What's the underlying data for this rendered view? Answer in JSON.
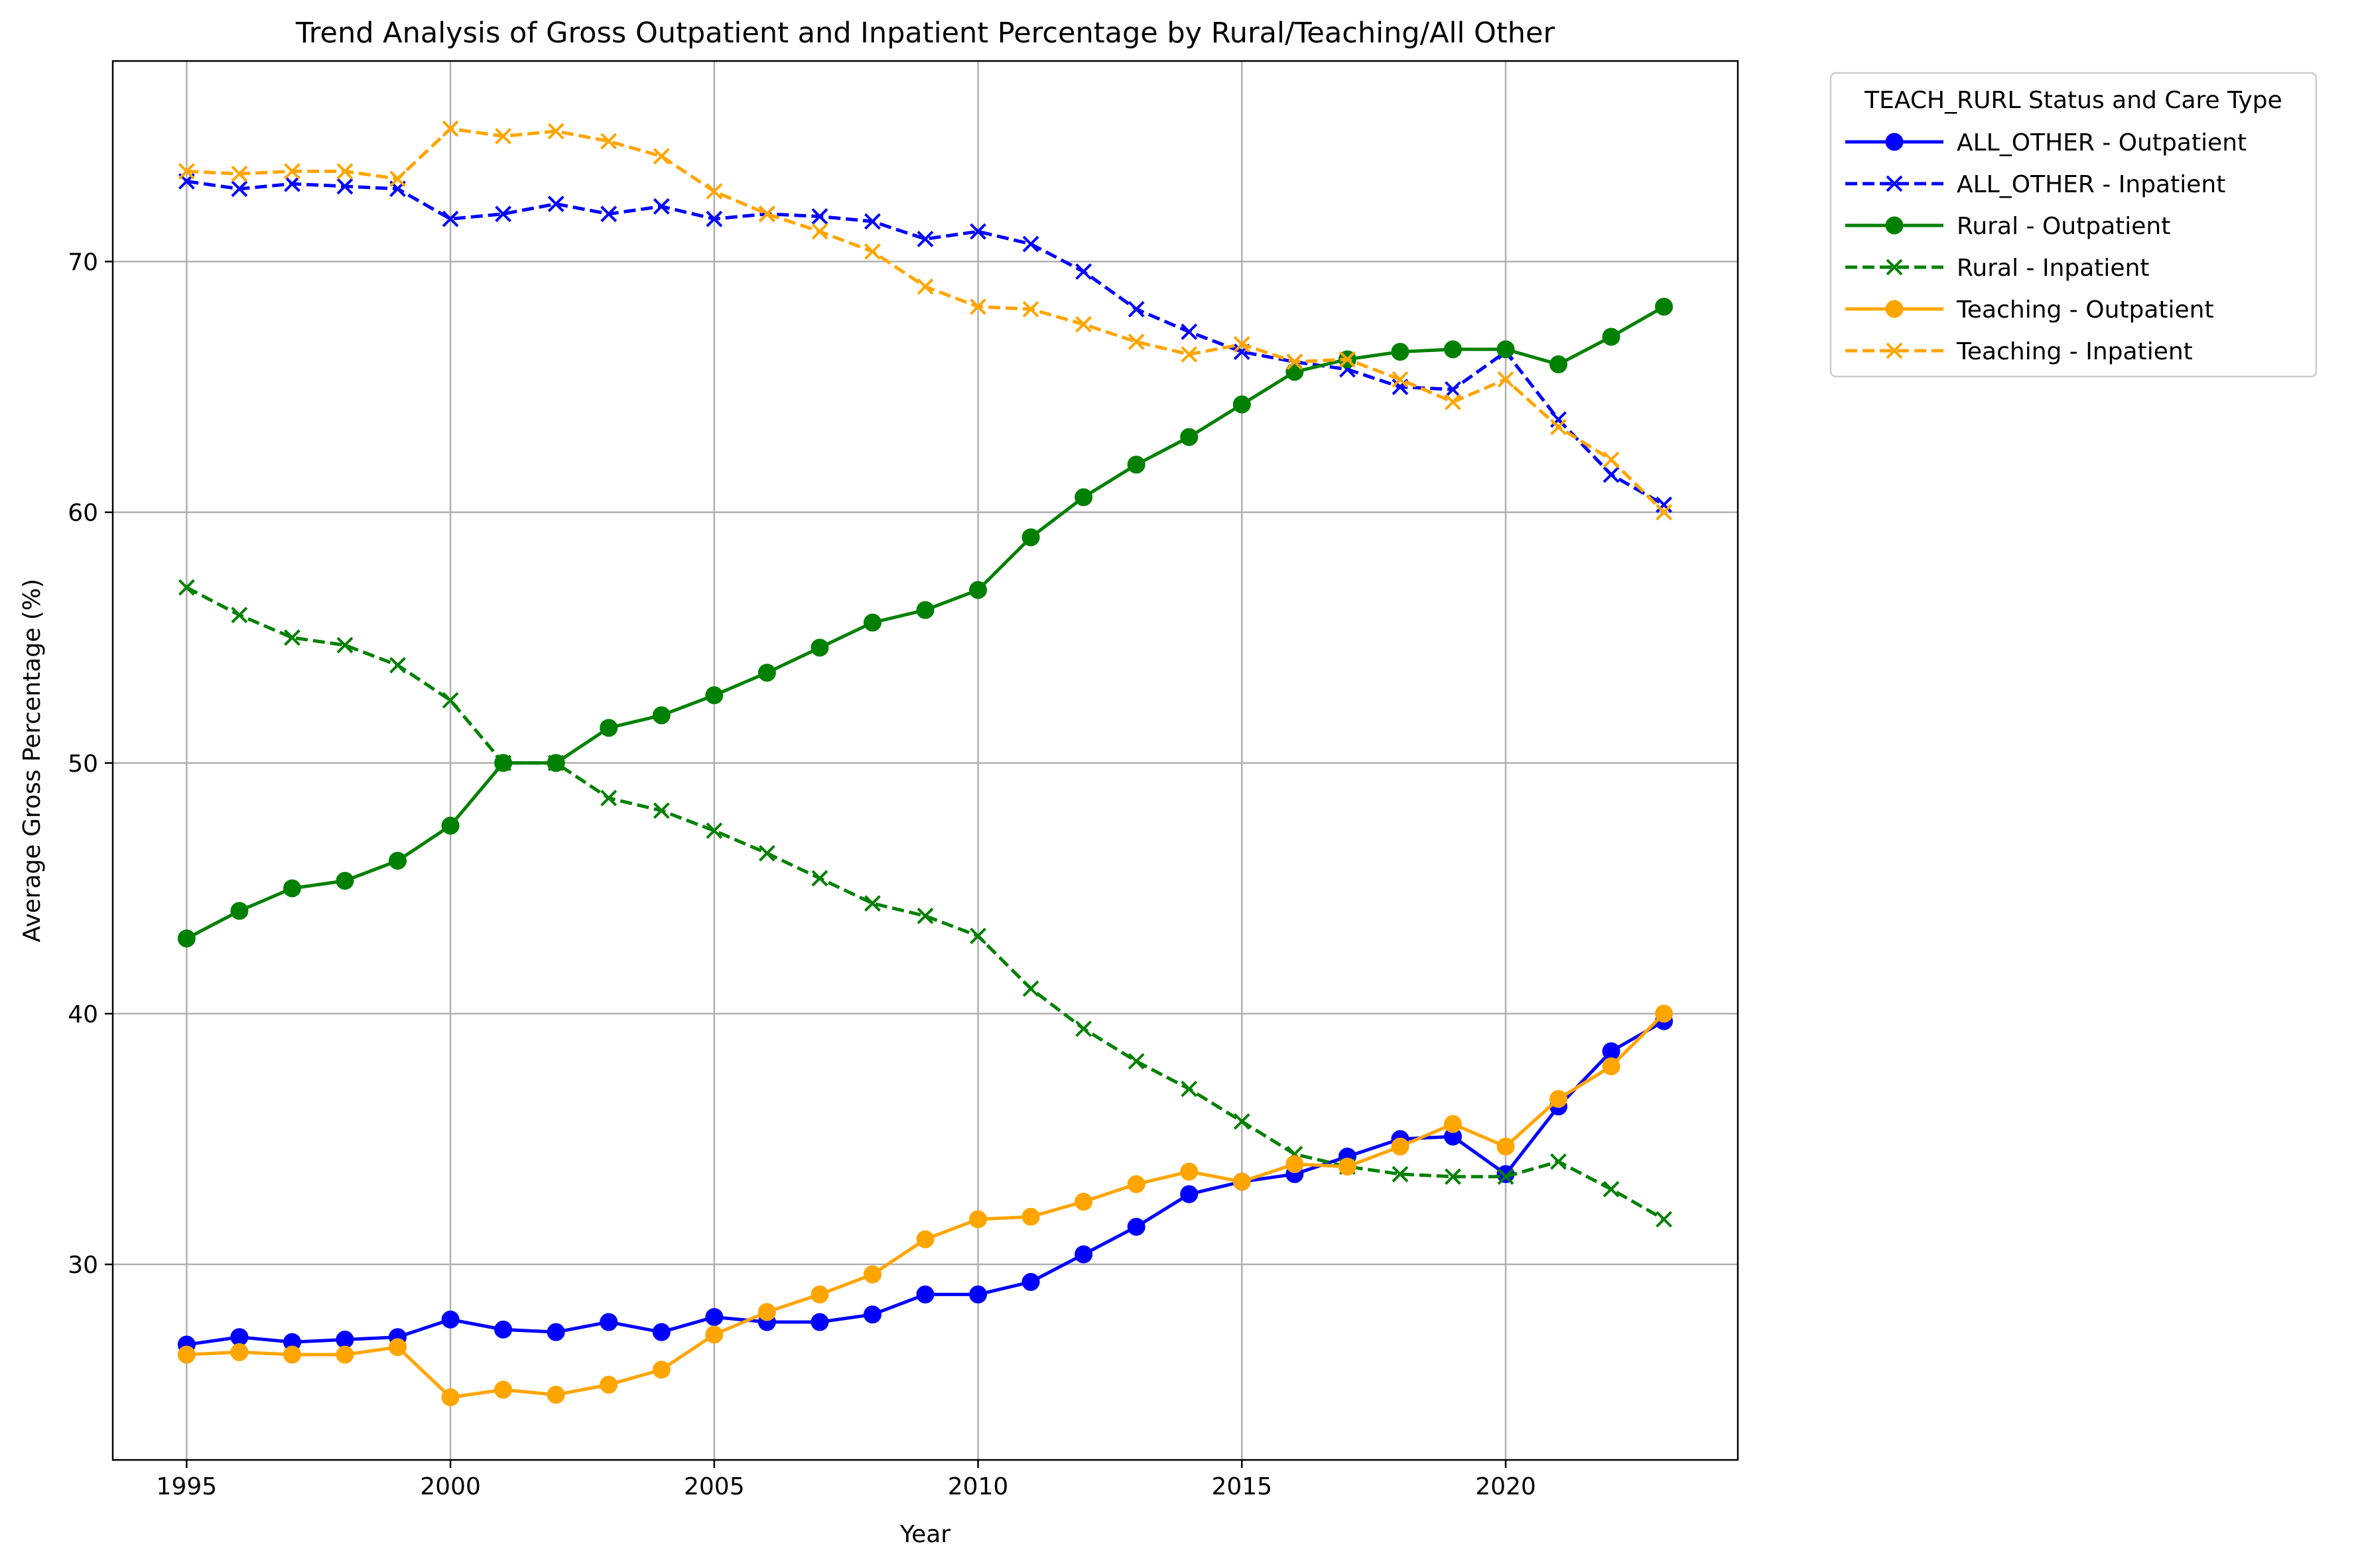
{
  "chart_data": {
    "type": "line",
    "title": "Trend Analysis of Gross Outpatient and Inpatient Percentage by Rural/Teaching/All Other",
    "xlabel": "Year",
    "ylabel": "Average Gross Percentage (%)",
    "xlim": [
      1993.6,
      2024.4
    ],
    "ylim": [
      22.2,
      78.0
    ],
    "xticks": [
      1995,
      2000,
      2005,
      2010,
      2015,
      2020
    ],
    "yticks": [
      30,
      40,
      50,
      60,
      70
    ],
    "grid": true,
    "legend_title": "TEACH_RURL Status and Care Type",
    "legend_position": "outside-top-right",
    "x": [
      1995,
      1996,
      1997,
      1998,
      1999,
      2000,
      2001,
      2002,
      2003,
      2004,
      2005,
      2006,
      2007,
      2008,
      2009,
      2010,
      2011,
      2012,
      2013,
      2014,
      2015,
      2016,
      2017,
      2018,
      2019,
      2020,
      2021,
      2022,
      2023
    ],
    "series": [
      {
        "name": "ALL_OTHER - Outpatient",
        "color": "#0000ff",
        "style": "solid",
        "marker": "circle",
        "values": [
          26.8,
          27.1,
          26.9,
          27.0,
          27.1,
          27.8,
          27.4,
          27.3,
          27.7,
          27.3,
          27.9,
          27.7,
          27.7,
          28.0,
          28.8,
          28.8,
          29.3,
          30.4,
          31.5,
          32.8,
          33.3,
          33.6,
          34.3,
          35.0,
          35.1,
          33.6,
          36.3,
          38.5,
          39.7
        ]
      },
      {
        "name": "ALL_OTHER - Inpatient",
        "color": "#0000ff",
        "style": "dashed",
        "marker": "x",
        "values": [
          73.2,
          72.9,
          73.1,
          73.0,
          72.9,
          71.7,
          71.9,
          72.3,
          71.9,
          72.2,
          71.7,
          71.9,
          71.8,
          71.6,
          70.9,
          71.2,
          70.7,
          69.6,
          68.1,
          67.2,
          66.4,
          66.0,
          65.7,
          65.0,
          64.9,
          66.4,
          63.7,
          61.5,
          60.3
        ]
      },
      {
        "name": "Rural - Outpatient",
        "color": "#008000",
        "style": "solid",
        "marker": "circle",
        "values": [
          43.0,
          44.1,
          45.0,
          45.3,
          46.1,
          47.5,
          50.0,
          50.0,
          51.4,
          51.9,
          52.7,
          53.6,
          54.6,
          55.6,
          56.1,
          56.9,
          59.0,
          60.6,
          61.9,
          63.0,
          64.3,
          65.6,
          66.1,
          66.4,
          66.5,
          66.5,
          65.9,
          67.0,
          68.2
        ]
      },
      {
        "name": "Rural - Inpatient",
        "color": "#008000",
        "style": "dashed",
        "marker": "x",
        "values": [
          57.0,
          55.9,
          55.0,
          54.7,
          53.9,
          52.5,
          50.0,
          50.0,
          48.6,
          48.1,
          47.3,
          46.4,
          45.4,
          44.4,
          43.9,
          43.1,
          41.0,
          39.4,
          38.1,
          37.0,
          35.7,
          34.4,
          33.9,
          33.6,
          33.5,
          33.5,
          34.1,
          33.0,
          31.8
        ]
      },
      {
        "name": "Teaching - Outpatient",
        "color": "#ffa500",
        "style": "solid",
        "marker": "circle",
        "values": [
          26.4,
          26.5,
          26.4,
          26.4,
          26.7,
          24.7,
          25.0,
          24.8,
          25.2,
          25.8,
          27.2,
          28.1,
          28.8,
          29.6,
          31.0,
          31.8,
          31.9,
          32.5,
          33.2,
          33.7,
          33.3,
          34.0,
          33.9,
          34.7,
          35.6,
          34.7,
          36.6,
          37.9,
          40.0
        ]
      },
      {
        "name": "Teaching - Inpatient",
        "color": "#ffa500",
        "style": "dashed",
        "marker": "x",
        "values": [
          73.6,
          73.5,
          73.6,
          73.6,
          73.3,
          75.3,
          75.0,
          75.2,
          74.8,
          74.2,
          72.8,
          71.9,
          71.2,
          70.4,
          69.0,
          68.2,
          68.1,
          67.5,
          66.8,
          66.3,
          66.7,
          66.0,
          66.1,
          65.3,
          64.4,
          65.3,
          63.4,
          62.1,
          60.0
        ]
      }
    ]
  }
}
